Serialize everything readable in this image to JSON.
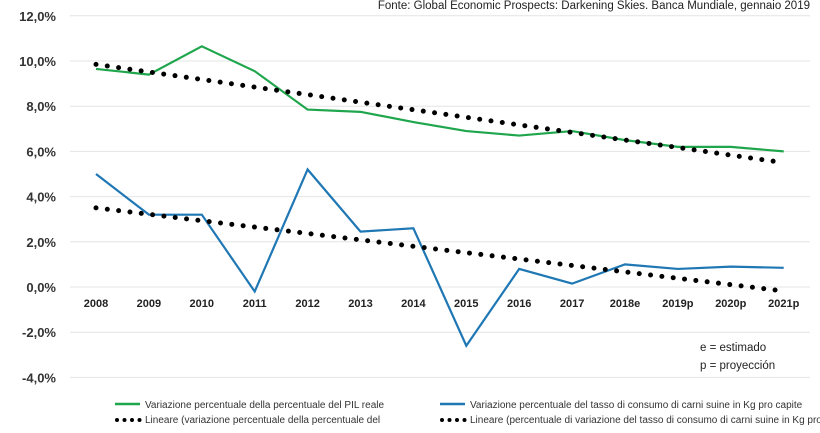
{
  "source": "Fonte: Global Economic Prospects: Darkening Skies. Banca Mundiale, gennaio 2019",
  "notes": [
    "e = estimado",
    "p = proyección"
  ],
  "colors": {
    "gdp": "#1fa64d",
    "pork": "#1f77b4",
    "trend": "#000000",
    "grid": "#e4e4e4"
  },
  "chart_data": {
    "type": "line",
    "title": "",
    "xlabel": "",
    "ylabel": "",
    "ylim": [
      -4,
      12
    ],
    "yticks": [
      "12,0%",
      "10,0%",
      "8,0%",
      "6,0%",
      "4,0%",
      "2,0%",
      "0,0%",
      "-2,0%",
      "-4,0%"
    ],
    "ytick_values": [
      12,
      10,
      8,
      6,
      4,
      2,
      0,
      -2,
      -4
    ],
    "grid": true,
    "legend_position": "bottom",
    "categories": [
      "2008",
      "2009",
      "2010",
      "2011",
      "2012",
      "2013",
      "2014",
      "2015",
      "2016",
      "2017",
      "2018e",
      "2019p",
      "2020p",
      "2021p"
    ],
    "series": [
      {
        "name": "Variazione percentuale della percentuale del PIL reale",
        "style": "solid",
        "color": "#1fa64d",
        "values": [
          9.65,
          9.4,
          10.65,
          9.55,
          7.85,
          7.75,
          7.3,
          6.9,
          6.7,
          6.9,
          6.5,
          6.2,
          6.2,
          6.0
        ]
      },
      {
        "name": "Variazione percentuale del tasso di consumo di carni suine in Kg pro capite",
        "style": "solid",
        "color": "#1f77b4",
        "values": [
          5.0,
          3.2,
          3.2,
          -0.2,
          5.2,
          2.45,
          2.6,
          -2.6,
          0.8,
          0.15,
          1.0,
          0.8,
          0.9,
          0.85
        ]
      },
      {
        "name": "Lineare (variazione percentuale della percentuale del",
        "style": "dotted",
        "color": "#000000",
        "values": [
          9.85,
          9.52,
          9.18,
          8.85,
          8.51,
          8.18,
          7.84,
          7.51,
          7.17,
          6.84,
          6.5,
          6.17,
          5.83,
          5.5
        ]
      },
      {
        "name": "Lineare (percentuale di variazione del tasso di consumo di carni suine in Kg pro capite)",
        "style": "dotted",
        "color": "#000000",
        "values": [
          3.5,
          3.22,
          2.93,
          2.65,
          2.37,
          2.08,
          1.8,
          1.52,
          1.23,
          0.95,
          0.67,
          0.38,
          0.1,
          -0.18
        ]
      }
    ]
  }
}
